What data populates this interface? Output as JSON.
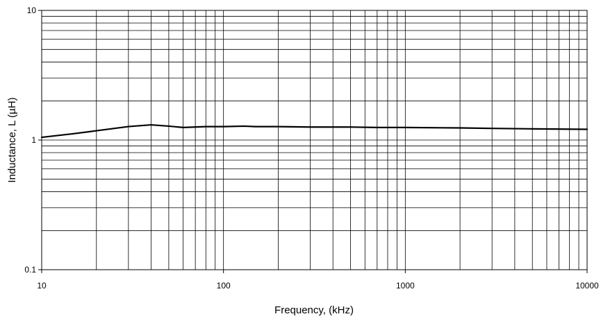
{
  "chart_data": {
    "type": "line",
    "xlabel": "Frequency, (kHz)",
    "ylabel": "Inductance, L (µH)",
    "x_scale": "log",
    "y_scale": "log",
    "xlim": [
      10,
      10000
    ],
    "ylim": [
      0.1,
      10
    ],
    "grid": true,
    "x_tick_labels": [
      "10",
      "100",
      "1000",
      "10000"
    ],
    "y_tick_labels": [
      "0.1",
      "1",
      "10"
    ],
    "series": [
      {
        "color": "#000000",
        "x": [
          10,
          15,
          20,
          30,
          40,
          50,
          60,
          80,
          100,
          130,
          150,
          200,
          300,
          500,
          700,
          1000,
          2000,
          3000,
          5000,
          10000
        ],
        "y": [
          1.05,
          1.12,
          1.18,
          1.27,
          1.31,
          1.28,
          1.25,
          1.27,
          1.27,
          1.28,
          1.27,
          1.27,
          1.26,
          1.26,
          1.25,
          1.25,
          1.24,
          1.23,
          1.22,
          1.21
        ]
      }
    ]
  }
}
